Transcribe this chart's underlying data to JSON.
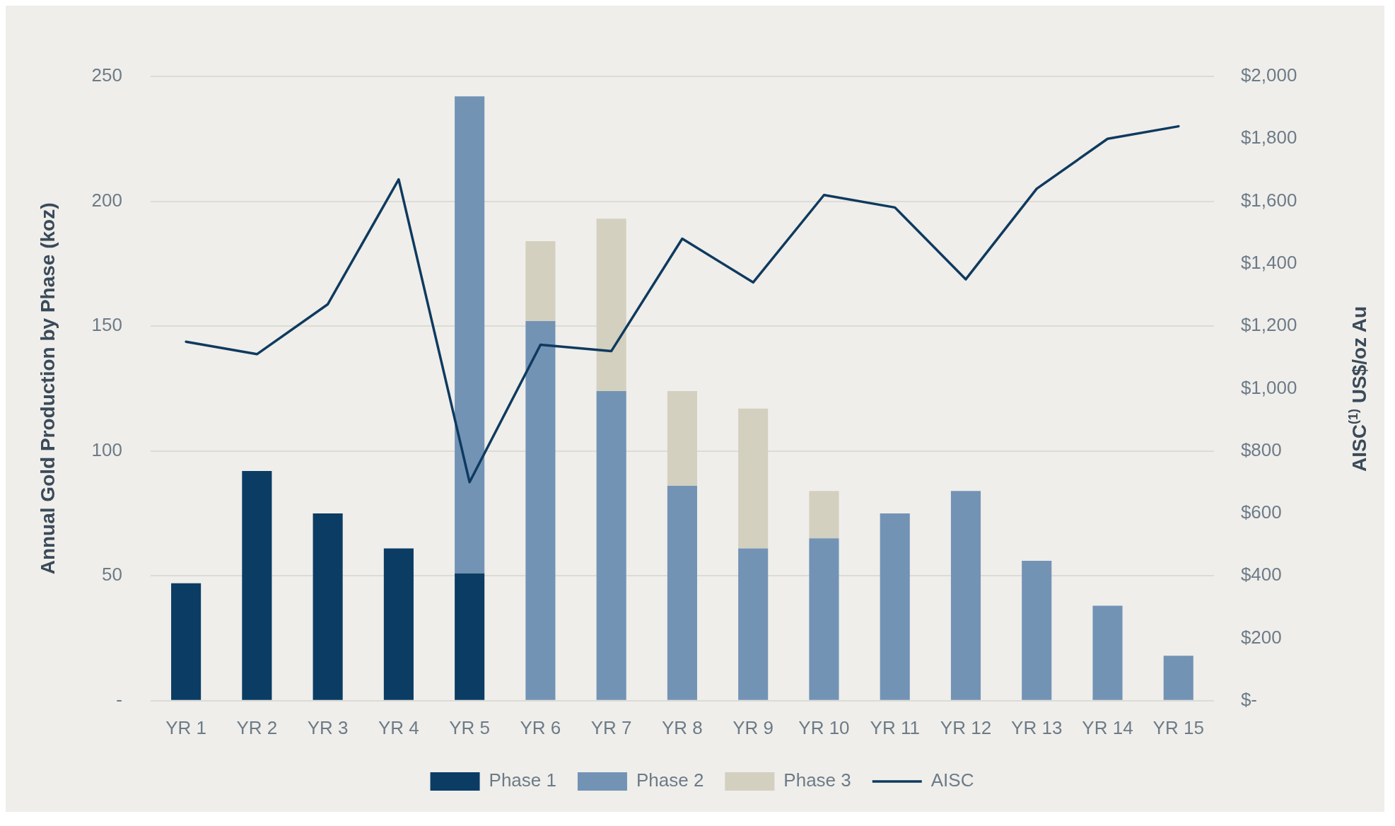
{
  "chart_data": {
    "type": "bar",
    "stacked": true,
    "ylabel": "Annual Gold Production by Phase (koz)",
    "y2label": "AISC$^{(1)}$ US$/oz Au",
    "categories": [
      "YR 1",
      "YR 2",
      "YR 3",
      "YR 4",
      "YR 5",
      "YR 6",
      "YR 7",
      "YR 8",
      "YR 9",
      "YR 10",
      "YR 11",
      "YR 12",
      "YR 13",
      "YR 14",
      "YR 15"
    ],
    "series": [
      {
        "name": "Phase 1",
        "color": "#0b3c64",
        "values": [
          47,
          92,
          75,
          61,
          51,
          null,
          null,
          null,
          null,
          null,
          null,
          null,
          null,
          null,
          null
        ]
      },
      {
        "name": "Phase 2",
        "color": "#7393b5",
        "values": [
          null,
          null,
          null,
          null,
          191,
          152,
          124,
          86,
          61,
          65,
          75,
          84,
          56,
          38,
          18
        ]
      },
      {
        "name": "Phase 3",
        "color": "#d3d0c0",
        "values": [
          null,
          null,
          null,
          null,
          null,
          32,
          69,
          38,
          56,
          19,
          null,
          null,
          null,
          null,
          null
        ]
      },
      {
        "name": "AISC",
        "type": "line",
        "axis": "y2",
        "color": "#0f3a5f",
        "values": [
          1150,
          1110,
          1270,
          1670,
          700,
          1140,
          1120,
          1480,
          1340,
          1620,
          1580,
          1350,
          1640,
          1800,
          1840
        ]
      }
    ],
    "ylim": [
      0,
      250
    ],
    "yticks": [
      {
        "value": 0,
        "label": "-"
      },
      50,
      100,
      150,
      200,
      250
    ],
    "y2lim": [
      0,
      2000
    ],
    "y2ticks": [
      {
        "value": 0,
        "label": "$-"
      },
      {
        "value": 200,
        "label": "$200"
      },
      {
        "value": 400,
        "label": "$400"
      },
      {
        "value": 600,
        "label": "$600"
      },
      {
        "value": 800,
        "label": "$800"
      },
      {
        "value": 1000,
        "label": "$1,000"
      },
      {
        "value": 1200,
        "label": "$1,200"
      },
      {
        "value": 1400,
        "label": "$1,400"
      },
      {
        "value": 1600,
        "label": "$1,600"
      },
      {
        "value": 1800,
        "label": "$1,800"
      },
      {
        "value": 2000,
        "label": "$2,000"
      }
    ],
    "grid": "y",
    "legend": "bottom",
    "marker": "none",
    "line_style": "solid"
  }
}
